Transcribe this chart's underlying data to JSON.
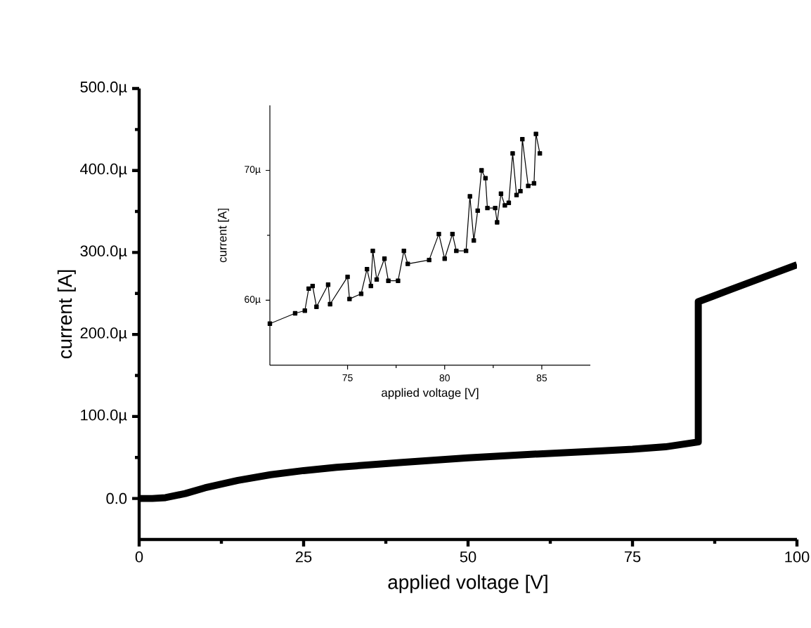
{
  "chart_data": [
    {
      "type": "line",
      "xlabel": "applied voltage [V]",
      "ylabel": "current [A]",
      "x": [
        0,
        2,
        4,
        7,
        10,
        15,
        20,
        25,
        30,
        40,
        50,
        60,
        70,
        75,
        80,
        85,
        85,
        90,
        95,
        100
      ],
      "series": [
        {
          "color": "#000000",
          "values": [
            0,
            0,
            1,
            6,
            13,
            22,
            29,
            34,
            38,
            44,
            49.5,
            54,
            58,
            60,
            63,
            69,
            240,
            255,
            270,
            285
          ]
        }
      ],
      "xlim": [
        0,
        100
      ],
      "xticks": [
        0,
        25,
        50,
        75,
        100
      ],
      "ylim": [
        -50,
        500
      ],
      "yticks": [
        {
          "value": 0,
          "label": "0.0"
        },
        {
          "value": 100,
          "label": "100.0µ"
        },
        {
          "value": 200,
          "label": "200.0µ"
        },
        {
          "value": 300,
          "label": "300.0µ"
        },
        {
          "value": 400,
          "label": "400.0µ"
        },
        {
          "value": 500,
          "label": "500.0µ"
        }
      ],
      "grid": false,
      "line_style": "solid"
    },
    {
      "type": "line",
      "xlabel": "applied voltage [V]",
      "ylabel": "current [A]",
      "x": [
        71,
        72.3,
        72.8,
        73.0,
        73.2,
        73.4,
        74.0,
        74.1,
        75.0,
        75.1,
        75.7,
        76.0,
        76.2,
        76.3,
        76.5,
        76.9,
        77.1,
        77.6,
        77.9,
        78.1,
        79.2,
        79.7,
        80.0,
        80.4,
        80.6,
        81.1,
        81.3,
        81.5,
        81.7,
        81.9,
        82.1,
        82.2,
        82.6,
        82.7,
        82.9,
        83.1,
        83.3,
        83.5,
        83.7,
        83.9,
        84.0,
        84.3,
        84.6,
        84.7,
        84.9
      ],
      "series": [
        {
          "color": "#000000",
          "values": [
            58.2,
            59.0,
            59.2,
            60.9,
            61.1,
            59.5,
            61.2,
            59.7,
            61.8,
            60.1,
            60.5,
            62.4,
            61.1,
            63.8,
            61.6,
            63.2,
            61.5,
            61.5,
            63.8,
            62.8,
            63.1,
            65.1,
            63.2,
            65.1,
            63.8,
            63.8,
            68.0,
            64.6,
            66.9,
            70.0,
            69.4,
            67.1,
            67.1,
            66.0,
            68.2,
            67.3,
            67.5,
            71.3,
            68.1,
            68.4,
            72.4,
            68.8,
            69.0,
            72.8,
            71.3
          ]
        }
      ],
      "xlim": [
        71,
        87.5
      ],
      "xticks": [
        75,
        80,
        85
      ],
      "ylim": [
        55,
        75
      ],
      "yticks": [
        {
          "value": 60,
          "label": "60µ"
        },
        {
          "value": 70,
          "label": "70µ"
        }
      ],
      "grid": false,
      "marker": "square",
      "line_style": "solid"
    }
  ]
}
